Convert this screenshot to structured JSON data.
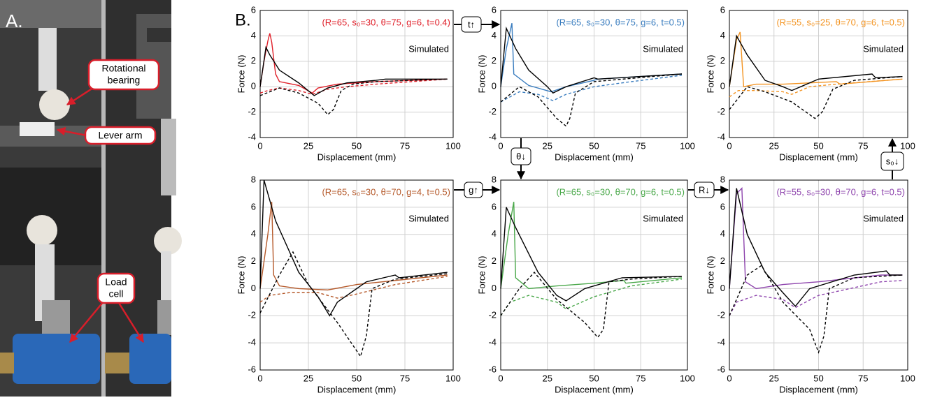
{
  "panel_a": {
    "label": "A.",
    "callouts": [
      {
        "lines": [
          "Rotational",
          "bearing"
        ]
      },
      {
        "lines": [
          "Lever arm"
        ]
      },
      {
        "lines": [
          "Load",
          "cell"
        ]
      }
    ]
  },
  "panel_b": {
    "label": "B.",
    "transitions": [
      {
        "label": "t↑"
      },
      {
        "label": "θ↓"
      },
      {
        "label": "g↑"
      },
      {
        "label": "R↓"
      },
      {
        "label": "s₀↓"
      }
    ]
  },
  "chart_data": [
    {
      "type": "line",
      "title": "(R=65, s₀=30, θ=75, g=6, t=0.4)",
      "annotation": "Simulated",
      "xlabel": "Displacement (mm)",
      "ylabel": "Force (N)",
      "xlim": [
        0,
        100
      ],
      "xticks": [
        0,
        25,
        50,
        75,
        100
      ],
      "ylim": [
        -4,
        6
      ],
      "yticks": [
        -4,
        -2,
        0,
        2,
        4,
        6
      ],
      "grid": true,
      "series": [
        {
          "color": "#e0202a",
          "dashed": false,
          "x": [
            0,
            2,
            4,
            5,
            6,
            8,
            10,
            20,
            27,
            30,
            40,
            60,
            97
          ],
          "values": [
            0,
            2,
            3.6,
            4.2,
            3.5,
            1,
            0.4,
            0.1,
            -0.5,
            -0.1,
            0.2,
            0.4,
            0.6
          ]
        },
        {
          "color": "#e0202a",
          "dashed": true,
          "x": [
            0,
            4,
            10,
            20,
            27,
            35,
            45,
            60,
            97
          ],
          "values": [
            -0.5,
            -0.3,
            -0.1,
            -0.3,
            -0.6,
            -0.2,
            0,
            0.2,
            0.6
          ]
        },
        {
          "color": "#000000",
          "dashed": false,
          "x": [
            0,
            3,
            5,
            10,
            20,
            28,
            35,
            45,
            60,
            65,
            97
          ],
          "values": [
            0,
            3.1,
            2.5,
            1.3,
            0.3,
            -0.7,
            -0.1,
            0.3,
            0.5,
            0.6,
            0.6
          ]
        },
        {
          "color": "#000000",
          "dashed": true,
          "x": [
            0,
            10,
            20,
            30,
            35,
            38,
            42,
            48,
            60,
            97
          ],
          "values": [
            -0.7,
            -0.1,
            -0.5,
            -1.3,
            -2.2,
            -1.8,
            -0.3,
            0.2,
            0.4,
            0.6
          ]
        }
      ]
    },
    {
      "type": "line",
      "title": "(R=65, s₀=30, θ=75, g=6, t=0.5)",
      "annotation": "Simulated",
      "xlabel": "Displacement (mm)",
      "ylabel": "Force (N)",
      "xlim": [
        0,
        100
      ],
      "xticks": [
        0,
        25,
        50,
        75,
        100
      ],
      "ylim": [
        -4,
        6
      ],
      "yticks": [
        -4,
        -2,
        0,
        2,
        4,
        6
      ],
      "grid": true,
      "series": [
        {
          "color": "#3a7dbf",
          "dashed": false,
          "x": [
            0,
            3,
            6,
            7,
            15,
            27,
            35,
            50,
            52,
            97
          ],
          "values": [
            0,
            3,
            5,
            1,
            0.1,
            -0.4,
            0,
            0.5,
            0.6,
            1
          ]
        },
        {
          "color": "#3a7dbf",
          "dashed": true,
          "x": [
            0,
            10,
            20,
            28,
            35,
            50,
            70,
            97
          ],
          "values": [
            -1.2,
            -0.4,
            -0.6,
            -1.1,
            -0.6,
            0,
            0.4,
            0.9
          ]
        },
        {
          "color": "#000000",
          "dashed": false,
          "x": [
            0,
            3,
            8,
            15,
            25,
            28,
            35,
            50,
            52,
            97
          ],
          "values": [
            0,
            4.6,
            3,
            1.3,
            0,
            -0.5,
            0,
            0.7,
            0.6,
            1
          ]
        },
        {
          "color": "#000000",
          "dashed": true,
          "x": [
            0,
            10,
            20,
            30,
            35,
            37,
            40,
            50,
            97
          ],
          "values": [
            -1.2,
            0,
            -0.8,
            -2.5,
            -3.1,
            -2.5,
            -0.5,
            0.4,
            1
          ]
        }
      ]
    },
    {
      "type": "line",
      "title": "(R=55, s₀=25, θ=70, g=6, t=0.5)",
      "annotation": "Simulated",
      "xlabel": "Displacement (mm)",
      "ylabel": "Force (N)",
      "xlim": [
        0,
        100
      ],
      "xticks": [
        0,
        25,
        50,
        75,
        100
      ],
      "ylim": [
        -4,
        6
      ],
      "yticks": [
        -4,
        -2,
        0,
        2,
        4,
        6
      ],
      "grid": true,
      "series": [
        {
          "color": "#f39422",
          "dashed": false,
          "x": [
            0,
            4,
            6,
            8,
            15,
            30,
            60,
            62,
            97
          ],
          "values": [
            0,
            3.7,
            4.3,
            0,
            0.2,
            0.2,
            0.4,
            0.2,
            0.6
          ]
        },
        {
          "color": "#f39422",
          "dashed": true,
          "x": [
            0,
            5,
            15,
            30,
            35,
            45,
            60,
            97
          ],
          "values": [
            -0.8,
            -0.3,
            -0.3,
            -0.4,
            -0.6,
            0,
            0.2,
            0.6
          ]
        },
        {
          "color": "#000000",
          "dashed": false,
          "x": [
            0,
            4,
            10,
            20,
            30,
            35,
            50,
            80,
            82,
            97
          ],
          "values": [
            0,
            4,
            2.5,
            0.5,
            0,
            -0.3,
            0.6,
            1,
            0.7,
            0.8
          ]
        },
        {
          "color": "#000000",
          "dashed": true,
          "x": [
            0,
            10,
            20,
            35,
            48,
            52,
            58,
            70,
            97
          ],
          "values": [
            -1.8,
            0,
            -0.4,
            -1.2,
            -2.5,
            -2,
            -0.2,
            0.5,
            0.8
          ]
        }
      ]
    },
    {
      "type": "line",
      "title": "(R=65, s₀=30, θ=70, g=4, t=0.5)",
      "annotation": "Simulated",
      "xlabel": "Displacement (mm)",
      "ylabel": "Force (N)",
      "xlim": [
        0,
        100
      ],
      "xticks": [
        0,
        25,
        50,
        75,
        100
      ],
      "ylim": [
        -6,
        8
      ],
      "yticks": [
        -6,
        -4,
        -2,
        0,
        2,
        4,
        6,
        8
      ],
      "grid": true,
      "series": [
        {
          "color": "#b5592a",
          "dashed": false,
          "x": [
            0,
            4,
            6,
            7,
            10,
            20,
            35,
            50,
            97
          ],
          "values": [
            0,
            4,
            6.4,
            1,
            0.2,
            0,
            -0.1,
            0.3,
            1
          ]
        },
        {
          "color": "#b5592a",
          "dashed": true,
          "x": [
            0,
            5,
            15,
            30,
            40,
            50,
            70,
            97
          ],
          "values": [
            -1,
            -0.5,
            -0.3,
            -0.3,
            -0.7,
            -0.4,
            0.3,
            0.9
          ]
        },
        {
          "color": "#000000",
          "dashed": false,
          "x": [
            0,
            2,
            8,
            20,
            30,
            36,
            40,
            55,
            70,
            72,
            97
          ],
          "values": [
            0,
            8,
            5,
            1.2,
            -0.6,
            -2,
            -1,
            0.5,
            1,
            0.8,
            1.2
          ]
        },
        {
          "color": "#000000",
          "dashed": true,
          "x": [
            0,
            10,
            17,
            25,
            40,
            52,
            55,
            58,
            70,
            97
          ],
          "values": [
            -1.8,
            1,
            2.7,
            0.3,
            -2.5,
            -5,
            -3.5,
            0,
            0.7,
            1.1
          ]
        }
      ]
    },
    {
      "type": "line",
      "title": "(R=65, s₀=30, θ=70, g=6, t=0.5)",
      "annotation": "Simulated",
      "xlabel": "Displacement (mm)",
      "ylabel": "Force (N)",
      "xlim": [
        0,
        100
      ],
      "xticks": [
        0,
        25,
        50,
        75,
        100
      ],
      "ylim": [
        -6,
        8
      ],
      "yticks": [
        -6,
        -4,
        -2,
        0,
        2,
        4,
        6,
        8
      ],
      "grid": true,
      "series": [
        {
          "color": "#4aa84a",
          "dashed": false,
          "x": [
            0,
            4,
            7,
            8,
            15,
            30,
            50,
            66,
            67,
            97
          ],
          "values": [
            0,
            4,
            6.4,
            0.8,
            0,
            0.2,
            0.4,
            0.6,
            0.4,
            0.8
          ]
        },
        {
          "color": "#4aa84a",
          "dashed": true,
          "x": [
            0,
            5,
            15,
            30,
            35,
            50,
            70,
            97
          ],
          "values": [
            -2,
            -1,
            -0.5,
            -1,
            -1.5,
            -0.6,
            0.2,
            0.7
          ]
        },
        {
          "color": "#000000",
          "dashed": false,
          "x": [
            0,
            3,
            8,
            20,
            30,
            35,
            45,
            65,
            97
          ],
          "values": [
            0,
            6,
            4.5,
            1.2,
            -0.5,
            -0.9,
            0,
            0.8,
            0.9
          ]
        },
        {
          "color": "#000000",
          "dashed": true,
          "x": [
            0,
            10,
            18,
            30,
            45,
            52,
            55,
            58,
            70,
            97
          ],
          "values": [
            -2,
            0,
            1.2,
            -0.8,
            -2.5,
            -3.6,
            -3,
            0.5,
            0.7,
            0.9
          ]
        }
      ]
    },
    {
      "type": "line",
      "title": "(R=55, s₀=30, θ=70, g=6, t=0.5)",
      "annotation": "Simulated",
      "xlabel": "Displacement (mm)",
      "ylabel": "Force (N)",
      "xlim": [
        0,
        100
      ],
      "xticks": [
        0,
        25,
        50,
        75,
        100
      ],
      "ylim": [
        -6,
        8
      ],
      "yticks": [
        -6,
        -4,
        -2,
        0,
        2,
        4,
        6,
        8
      ],
      "grid": true,
      "series": [
        {
          "color": "#8e44ad",
          "dashed": false,
          "x": [
            0,
            4,
            7,
            9,
            15,
            30,
            50,
            85,
            97
          ],
          "values": [
            0,
            7,
            7.4,
            0.5,
            0,
            0.3,
            0.5,
            1,
            1
          ]
        },
        {
          "color": "#8e44ad",
          "dashed": true,
          "x": [
            0,
            4,
            15,
            30,
            37,
            50,
            85,
            97
          ],
          "values": [
            -2,
            -1,
            -0.5,
            -0.8,
            -1.4,
            -0.5,
            0.5,
            0.6
          ]
        },
        {
          "color": "#000000",
          "dashed": false,
          "x": [
            0,
            4,
            10,
            20,
            30,
            37,
            45,
            70,
            88,
            90,
            97
          ],
          "values": [
            0,
            7.4,
            4,
            1.2,
            -0.3,
            -1.3,
            0,
            1,
            1.3,
            1,
            1
          ]
        },
        {
          "color": "#000000",
          "dashed": true,
          "x": [
            0,
            10,
            18,
            30,
            45,
            50,
            53,
            56,
            70,
            97
          ],
          "values": [
            -2,
            1,
            1.7,
            -1,
            -3,
            -4.7,
            -3.5,
            0,
            0.8,
            1
          ]
        }
      ]
    }
  ]
}
